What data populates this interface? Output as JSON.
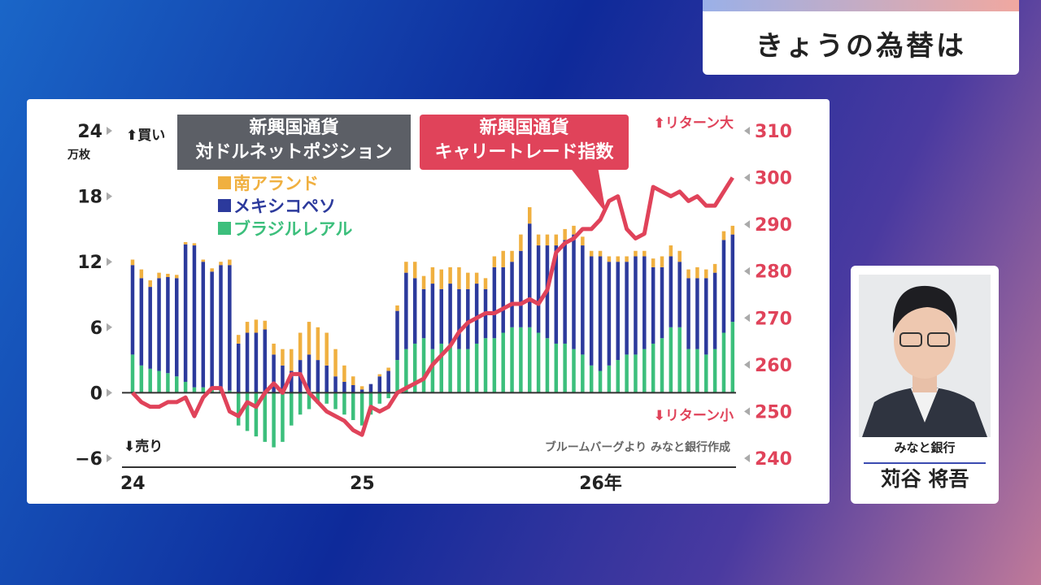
{
  "header": {
    "title": "きょうの為替は"
  },
  "chart_data": {
    "type": "bar-line",
    "left_title": "新興国通貨\n対ドルネットポジション",
    "y_label": "万枚",
    "annotations": {
      "buy": "⬆買い",
      "sell": "⬇売り",
      "return_high": "⬆リターン大",
      "return_low": "⬇リターン小"
    },
    "source": "ブルームバーグより みなと銀行作成",
    "categories": [
      "24",
      null,
      null,
      null,
      null,
      null,
      null,
      null,
      null,
      null,
      null,
      null,
      null,
      null,
      null,
      null,
      null,
      null,
      null,
      null,
      null,
      null,
      null,
      null,
      null,
      null,
      "25",
      null,
      null,
      null,
      null,
      null,
      null,
      null,
      null,
      null,
      null,
      null,
      null,
      null,
      null,
      null,
      null,
      null,
      null,
      null,
      null,
      null,
      null,
      null,
      null,
      null,
      "26年",
      null,
      null,
      null,
      null,
      null,
      null,
      null,
      null,
      null,
      null,
      null,
      null,
      null,
      null,
      null,
      null
    ],
    "ylim": [
      -6,
      24
    ],
    "yticks": [
      {
        "value": -6,
        "label": "−6"
      },
      0,
      6,
      12,
      18,
      24
    ],
    "y2lim": [
      240,
      310
    ],
    "y2ticks": [
      240,
      250,
      260,
      270,
      280,
      290,
      300,
      310
    ],
    "series": [
      {
        "name": "南アランド",
        "color": "#f0b040",
        "values": [
          0.5,
          0.8,
          0.6,
          0.5,
          0.3,
          0.3,
          0.2,
          0.2,
          0.2,
          0.3,
          0.3,
          0.5,
          0.8,
          1,
          1.2,
          0.8,
          1,
          1.5,
          2,
          2.5,
          3,
          3,
          3,
          2.5,
          1.5,
          0.8,
          0.3,
          0,
          0.2,
          0.3,
          0.5,
          1,
          1.5,
          1.2,
          1.5,
          1.8,
          1.5,
          2,
          1.5,
          1,
          1,
          1,
          1.5,
          1,
          1.5,
          1.5,
          1,
          1,
          1,
          1,
          0.8,
          0.8,
          0.5,
          0.5,
          0.5,
          0.5,
          0.5,
          0.5,
          0.5,
          0.8,
          1,
          1,
          1,
          0.8,
          1,
          0.8,
          0.8,
          0.8,
          0.8
        ]
      },
      {
        "name": "メキシコペソ",
        "color": "#2c3a9c",
        "values": [
          8.2,
          8,
          7.5,
          8.5,
          8.8,
          9,
          12.6,
          13,
          11.5,
          10.8,
          11.5,
          11.5,
          4.5,
          5.5,
          5.5,
          5.8,
          3.5,
          2.5,
          2,
          3,
          3.5,
          3,
          2.5,
          1.5,
          1,
          0.7,
          0.3,
          0.8,
          1.5,
          2,
          4.5,
          7,
          6,
          4.5,
          6,
          5,
          5.5,
          5.5,
          5.5,
          5.5,
          4.5,
          6.5,
          6,
          6,
          7,
          9.5,
          8,
          8.5,
          9,
          9.5,
          10.5,
          10,
          10,
          10.5,
          9.5,
          9,
          8.5,
          9,
          8.5,
          7,
          6.5,
          6.5,
          6,
          6.5,
          6.5,
          7,
          7,
          8.5,
          8
        ]
      },
      {
        "name": "ブラジルレアル",
        "color": "#3cbf7c",
        "values": [
          3.5,
          2.5,
          2.2,
          2,
          1.8,
          1.5,
          1,
          0.5,
          0.5,
          0.3,
          0.2,
          0.2,
          -3,
          -3.5,
          -4,
          -4.5,
          -5,
          -4.5,
          -3,
          -2,
          -1.5,
          -1,
          -1,
          -1.5,
          -2,
          -2.5,
          -3,
          -2,
          -1,
          -0.5,
          3,
          4,
          4.5,
          5,
          4,
          4.5,
          4.5,
          4,
          4,
          4.5,
          5,
          5,
          5.5,
          6,
          6,
          6,
          5.5,
          5,
          4.5,
          4.5,
          4,
          3.5,
          2.5,
          2,
          2.5,
          3,
          3.5,
          3.5,
          4,
          4.5,
          5,
          6,
          6,
          4,
          4,
          3.5,
          4,
          5.5,
          6.5
        ]
      },
      {
        "name": "新興国通貨\nキャリートレード指数",
        "color": "#e0435a",
        "axis": "y2",
        "values": [
          254,
          252,
          251,
          251,
          252,
          252,
          253,
          249,
          253,
          255,
          255,
          250,
          249,
          252,
          251,
          254,
          256,
          254,
          258,
          258,
          254,
          252,
          250,
          249,
          248,
          246,
          245,
          251,
          250,
          251,
          254,
          255,
          256,
          257,
          260,
          262,
          264,
          267,
          269,
          270,
          271,
          271,
          272,
          273,
          273,
          274,
          273,
          276,
          284,
          286,
          287,
          289,
          289,
          291,
          295,
          296,
          289,
          287,
          288,
          298,
          297,
          296,
          297,
          295,
          296,
          294,
          294,
          297,
          300
        ]
      }
    ]
  },
  "guest": {
    "affiliation": "みなと銀行",
    "name": "苅谷 将吾"
  }
}
